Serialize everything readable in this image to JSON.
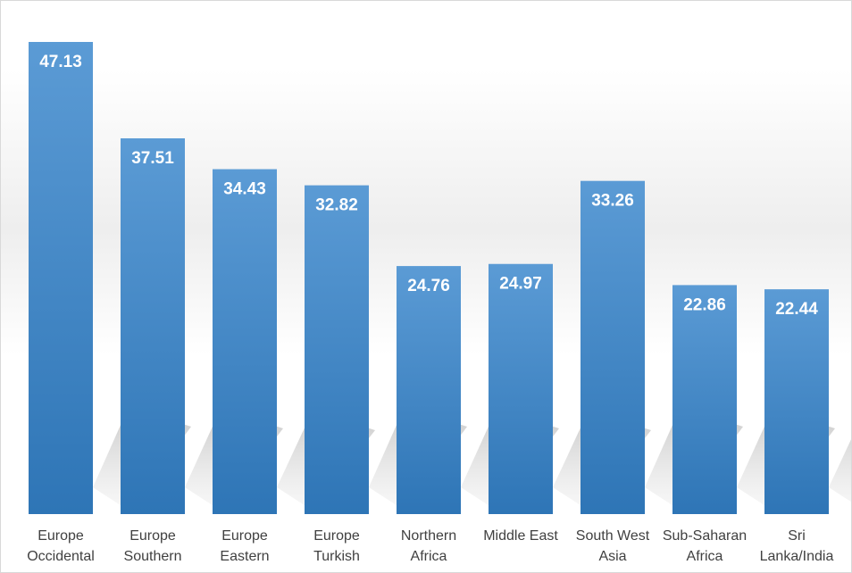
{
  "chart_data": {
    "type": "bar",
    "categories": [
      [
        "Europe",
        "Occidental"
      ],
      [
        "Europe",
        "Southern"
      ],
      [
        "Europe",
        "Eastern"
      ],
      [
        "Europe",
        "Turkish"
      ],
      [
        "Northern",
        "Africa"
      ],
      [
        "Middle East"
      ],
      [
        "South West",
        "Asia"
      ],
      [
        "Sub-Saharan",
        "Africa"
      ],
      [
        "Sri",
        "Lanka/India"
      ]
    ],
    "values": [
      47.13,
      37.51,
      34.43,
      32.82,
      24.76,
      24.97,
      33.26,
      22.86,
      22.44
    ],
    "value_labels": [
      "47.13",
      "37.51",
      "34.43",
      "32.82",
      "24.76",
      "24.97",
      "33.26",
      "22.86",
      "22.44"
    ],
    "ylim": [
      0,
      47.13
    ],
    "grid": false,
    "legend": "none",
    "colors": {
      "bar_top": "#5b9bd5",
      "bar_bottom": "#2e75b6",
      "label": "#ffffff",
      "axis_text": "#404040"
    }
  }
}
